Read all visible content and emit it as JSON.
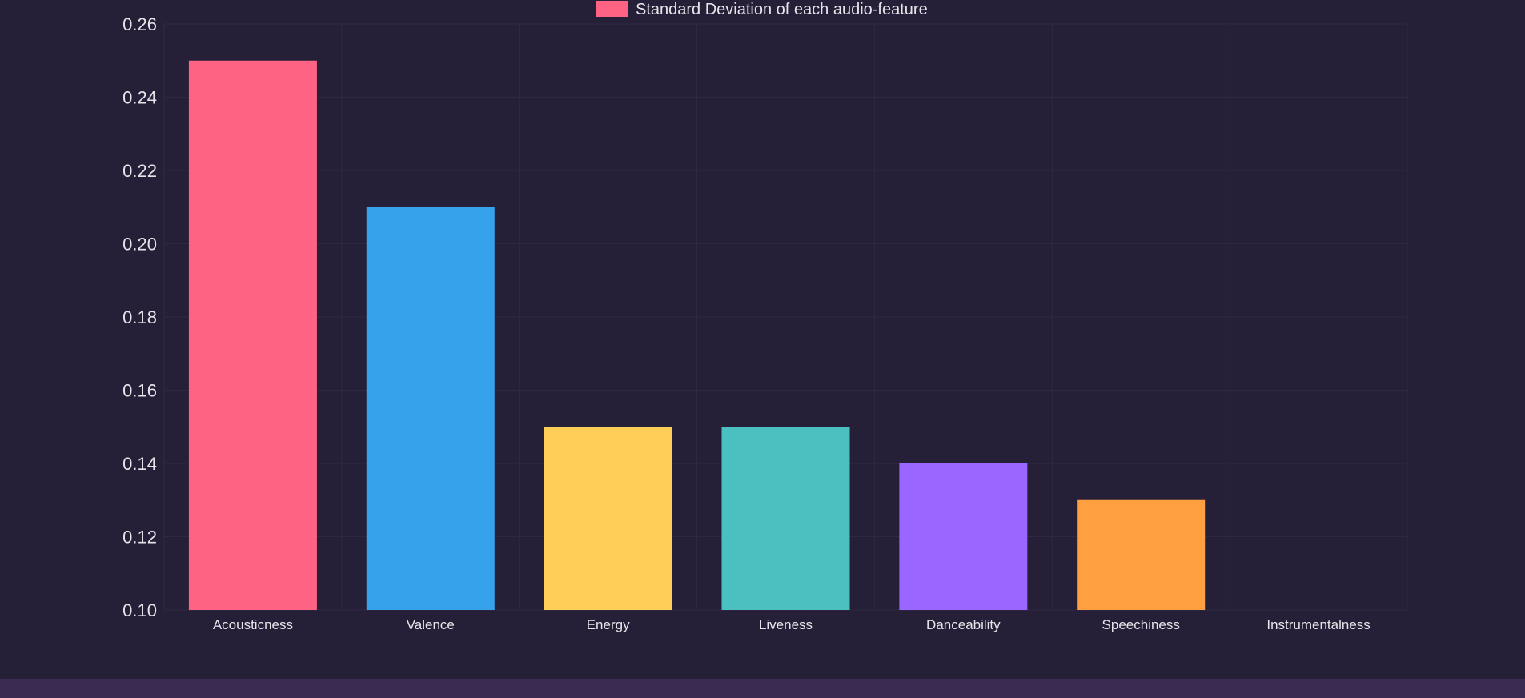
{
  "chart_data": {
    "type": "bar",
    "categories": [
      "Acousticness",
      "Valence",
      "Energy",
      "Liveness",
      "Danceability",
      "Speechiness",
      "Instrumentalness"
    ],
    "series": [
      {
        "name": "Standard Deviation of each audio-feature",
        "values": [
          0.25,
          0.21,
          0.15,
          0.15,
          0.14,
          0.13,
          0.1
        ]
      }
    ],
    "colors": [
      "#ff6384",
      "#36a2eb",
      "#ffce56",
      "#4bc0c0",
      "#9966ff",
      "#ff9f40",
      "#c9cbcf"
    ],
    "legend": {
      "label": "Standard Deviation of each audio-feature",
      "swatch_color": "#ff6384",
      "placement": "top-center"
    },
    "ylim": [
      0.1,
      0.26
    ],
    "yticks": [
      "0.26",
      "0.24",
      "0.22",
      "0.20",
      "0.18",
      "0.16",
      "0.14",
      "0.12",
      "0.10"
    ],
    "grid": true,
    "title": "",
    "xlabel": "",
    "ylabel": ""
  },
  "theme": {
    "background": "#261f38",
    "grid_color": "#2f2843",
    "text_color": "#e6e6ea",
    "footer_color": "#3b2a52"
  }
}
